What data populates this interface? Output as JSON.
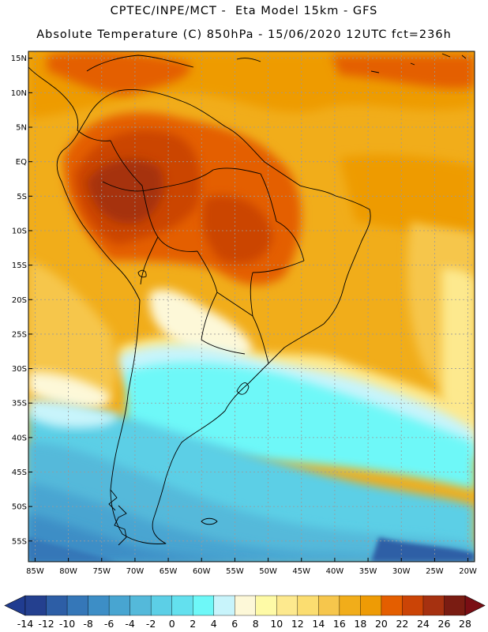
{
  "header": {
    "line1": "CPTEC/INPE/MCT -  Eta Model 15km - GFS",
    "line2": "Absolute Temperature (C) 850hPa - 15/06/2020 12UTC fct=236h"
  },
  "map": {
    "lat_labels": [
      "15N",
      "10N",
      "5N",
      "EQ",
      "5S",
      "10S",
      "15S",
      "20S",
      "25S",
      "30S",
      "35S",
      "40S",
      "45S",
      "50S",
      "55S"
    ],
    "lon_labels": [
      "85W",
      "80W",
      "75W",
      "70W",
      "65W",
      "60W",
      "55W",
      "50W",
      "45W",
      "40W",
      "35W",
      "30W",
      "25W",
      "20W"
    ],
    "lon_range": [
      -86,
      -19
    ],
    "lat_range": [
      -58,
      16
    ]
  },
  "colorbar": {
    "ticks": [
      "-14",
      "-12",
      "-10",
      "-8",
      "-6",
      "-4",
      "-2",
      "0",
      "2",
      "4",
      "6",
      "8",
      "10",
      "12",
      "14",
      "16",
      "18",
      "20",
      "22",
      "24",
      "26",
      "28"
    ],
    "colors": {
      "low_arrow": "#203c90",
      "high_arrow": "#7a0e14",
      "bins": [
        "#24408f",
        "#2d5ea6",
        "#3577b8",
        "#3d8ec6",
        "#48a5d1",
        "#54b9da",
        "#5ccfe6",
        "#63e0ee",
        "#6ef8f8",
        "#c8f4fb",
        "#fdf8d8",
        "#fefaa6",
        "#fde98e",
        "#fbdd70",
        "#f6c64c",
        "#f1ad1a",
        "#ee9b05",
        "#e45e00",
        "#cb4406",
        "#a63110",
        "#7a1c12"
      ]
    }
  },
  "legend_colors": {
    "background": "#ffffff",
    "grid": "#9a9a9a",
    "border": "#000000"
  }
}
